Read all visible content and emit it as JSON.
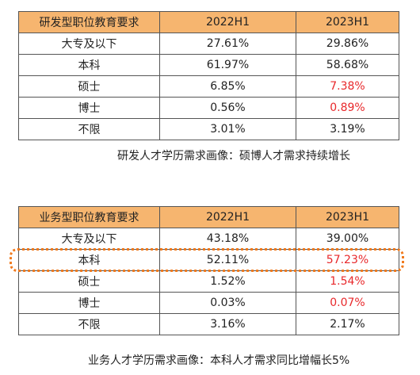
{
  "table1": {
    "headers": [
      "研发型职位教育要求",
      "2022H1",
      "2023H1"
    ],
    "rows": [
      {
        "label": "大专及以下",
        "v2022": "27.61%",
        "v2023": "29.86%",
        "highlight2023": false
      },
      {
        "label": "本科",
        "v2022": "61.97%",
        "v2023": "58.68%",
        "highlight2023": false
      },
      {
        "label": "硕士",
        "v2022": "6.85%",
        "v2023": "7.38%",
        "highlight2023": true
      },
      {
        "label": "博士",
        "v2022": "0.56%",
        "v2023": "0.89%",
        "highlight2023": true
      },
      {
        "label": "不限",
        "v2022": "3.01%",
        "v2023": "3.19%",
        "highlight2023": false
      }
    ],
    "caption": "研发人才学历需求画像：硕博人才需求持续增长"
  },
  "table2": {
    "headers": [
      "业务型职位教育要求",
      "2022H1",
      "2023H1"
    ],
    "rows": [
      {
        "label": "大专及以下",
        "v2022": "43.18%",
        "v2023": "39.00%",
        "highlight2023": false
      },
      {
        "label": "本科",
        "v2022": "52.11%",
        "v2023": "57.23%",
        "highlight2023": true
      },
      {
        "label": "硕士",
        "v2022": "1.52%",
        "v2023": "1.54%",
        "highlight2023": true
      },
      {
        "label": "博士",
        "v2022": "0.03%",
        "v2023": "0.07%",
        "highlight2023": true
      },
      {
        "label": "不限",
        "v2022": "3.16%",
        "v2023": "2.17%",
        "highlight2023": false
      }
    ],
    "caption": "业务人才学历需求画像：本科人才需求同比增幅长5%"
  },
  "colors": {
    "header_bg": "#f6b56f",
    "highlight_text": "#e8282b",
    "emphasis_outline": "#f07a1e"
  }
}
